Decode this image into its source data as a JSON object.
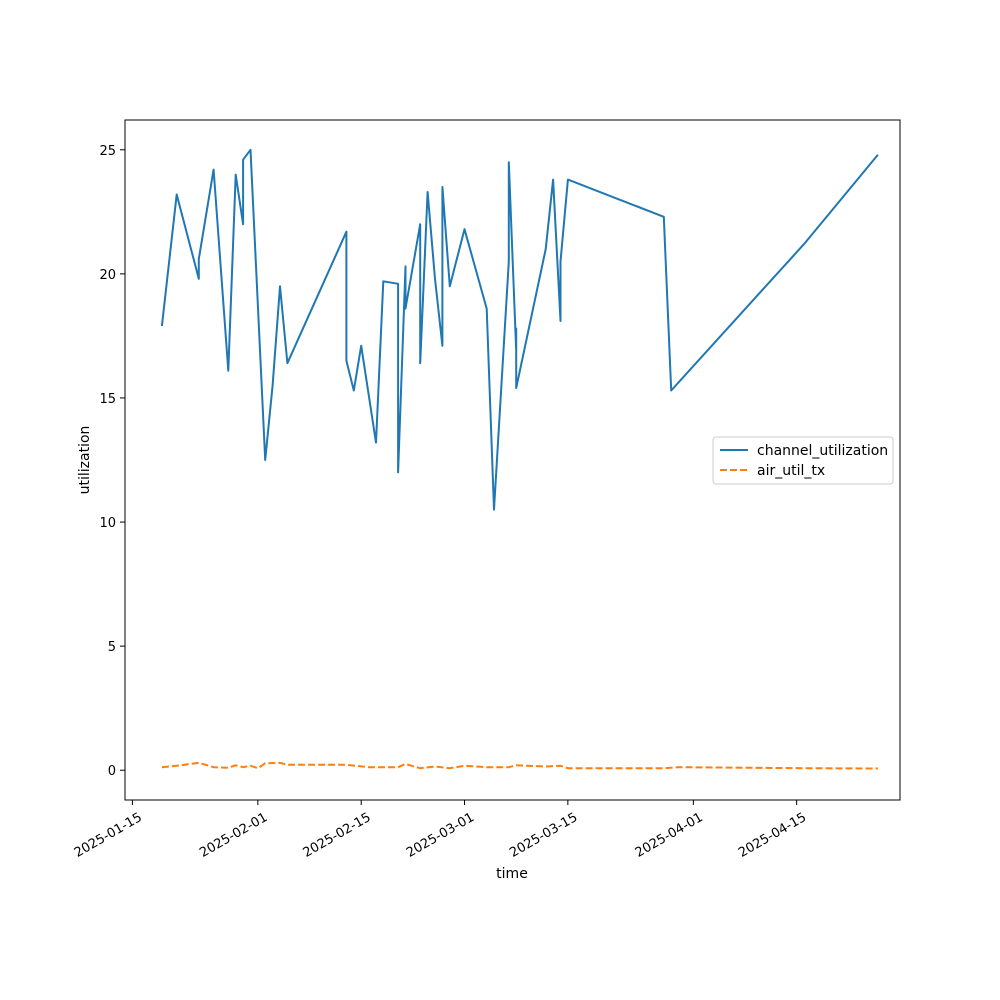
{
  "chart_data": {
    "type": "line",
    "title": "",
    "xlabel": "time",
    "ylabel": "utilization",
    "x_is_date": true,
    "xlim": [
      "2025-01-14",
      "2025-04-29"
    ],
    "ylim": [
      -1.2,
      26.2
    ],
    "x_ticks": [
      "2025-01-15",
      "2025-02-01",
      "2025-02-15",
      "2025-03-01",
      "2025-03-15",
      "2025-04-01",
      "2025-04-15"
    ],
    "y_ticks": [
      0,
      5,
      10,
      15,
      20,
      25
    ],
    "grid": false,
    "legend_position": "center-right",
    "series": [
      {
        "name": "channel_utilization",
        "color": "#1f77b4",
        "dash": "solid",
        "points": [
          [
            "2025-01-19",
            17.9
          ],
          [
            "2025-01-21",
            23.2
          ],
          [
            "2025-01-24",
            19.8
          ],
          [
            "2025-01-24",
            20.6
          ],
          [
            "2025-01-26",
            24.2
          ],
          [
            "2025-01-28",
            16.1
          ],
          [
            "2025-01-29",
            24.0
          ],
          [
            "2025-01-30",
            22.0
          ],
          [
            "2025-01-30",
            24.6
          ],
          [
            "2025-01-31",
            25.0
          ],
          [
            "2025-02-02",
            12.5
          ],
          [
            "2025-02-03",
            15.5
          ],
          [
            "2025-02-04",
            19.5
          ],
          [
            "2025-02-05",
            16.4
          ],
          [
            "2025-02-13",
            21.7
          ],
          [
            "2025-02-13",
            16.5
          ],
          [
            "2025-02-14",
            15.3
          ],
          [
            "2025-02-15",
            17.1
          ],
          [
            "2025-02-17",
            13.2
          ],
          [
            "2025-02-18",
            19.7
          ],
          [
            "2025-02-20",
            19.6
          ],
          [
            "2025-02-20",
            12.0
          ],
          [
            "2025-02-21",
            20.3
          ],
          [
            "2025-02-21",
            18.6
          ],
          [
            "2025-02-23",
            22.0
          ],
          [
            "2025-02-23",
            16.4
          ],
          [
            "2025-02-24",
            23.3
          ],
          [
            "2025-02-25",
            19.8
          ],
          [
            "2025-02-26",
            17.1
          ],
          [
            "2025-02-26",
            23.5
          ],
          [
            "2025-02-27",
            19.5
          ],
          [
            "2025-03-01",
            21.8
          ],
          [
            "2025-03-04",
            18.6
          ],
          [
            "2025-03-05",
            10.5
          ],
          [
            "2025-03-07",
            20.5
          ],
          [
            "2025-03-07",
            24.5
          ],
          [
            "2025-03-08",
            16.9
          ],
          [
            "2025-03-08",
            17.8
          ],
          [
            "2025-03-08",
            15.4
          ],
          [
            "2025-03-12",
            21.0
          ],
          [
            "2025-03-13",
            23.8
          ],
          [
            "2025-03-14",
            18.1
          ],
          [
            "2025-03-14",
            20.5
          ],
          [
            "2025-03-15",
            23.8
          ],
          [
            "2025-03-28",
            22.3
          ],
          [
            "2025-03-29",
            15.3
          ],
          [
            "2025-04-16",
            21.2
          ],
          [
            "2025-04-26",
            24.8
          ]
        ]
      },
      {
        "name": "air_util_tx",
        "color": "#ff7f0e",
        "dash": "dashed",
        "points": [
          [
            "2025-01-19",
            0.12
          ],
          [
            "2025-01-21",
            0.18
          ],
          [
            "2025-01-24",
            0.3
          ],
          [
            "2025-01-26",
            0.12
          ],
          [
            "2025-01-28",
            0.1
          ],
          [
            "2025-01-29",
            0.2
          ],
          [
            "2025-01-30",
            0.12
          ],
          [
            "2025-01-31",
            0.18
          ],
          [
            "2025-02-01",
            0.08
          ],
          [
            "2025-02-02",
            0.28
          ],
          [
            "2025-02-04",
            0.3
          ],
          [
            "2025-02-05",
            0.22
          ],
          [
            "2025-02-13",
            0.22
          ],
          [
            "2025-02-16",
            0.12
          ],
          [
            "2025-02-20",
            0.12
          ],
          [
            "2025-02-21",
            0.25
          ],
          [
            "2025-02-23",
            0.08
          ],
          [
            "2025-02-25",
            0.15
          ],
          [
            "2025-02-27",
            0.08
          ],
          [
            "2025-03-01",
            0.18
          ],
          [
            "2025-03-04",
            0.12
          ],
          [
            "2025-03-07",
            0.12
          ],
          [
            "2025-03-08",
            0.2
          ],
          [
            "2025-03-12",
            0.15
          ],
          [
            "2025-03-14",
            0.18
          ],
          [
            "2025-03-15",
            0.08
          ],
          [
            "2025-03-28",
            0.08
          ],
          [
            "2025-03-30",
            0.12
          ],
          [
            "2025-04-16",
            0.08
          ],
          [
            "2025-04-26",
            0.07
          ]
        ]
      }
    ]
  }
}
